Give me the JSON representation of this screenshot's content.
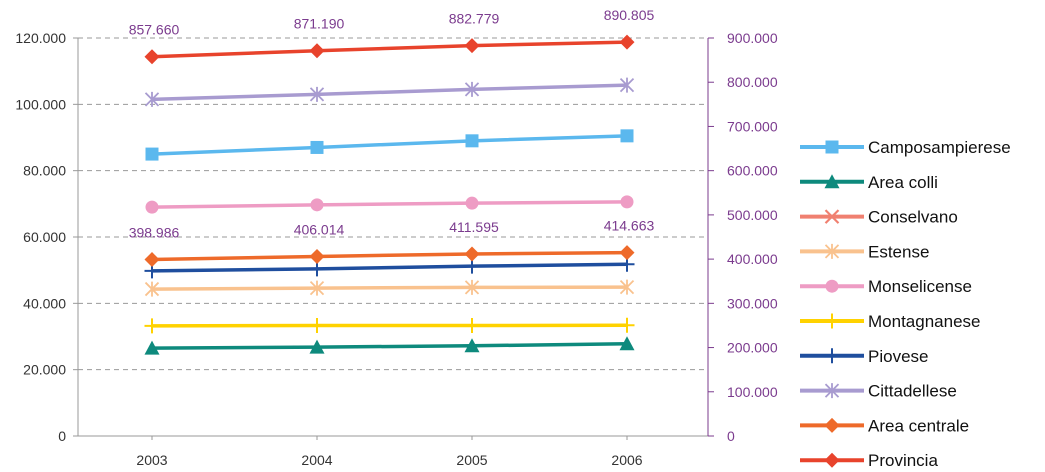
{
  "chart_data": {
    "type": "line",
    "x": [
      "2003",
      "2004",
      "2005",
      "2006"
    ],
    "y_left": {
      "range": [
        0,
        120000
      ],
      "ticks": [
        "0",
        "20.000",
        "40.000",
        "60.000",
        "80.000",
        "100.000",
        "120.000"
      ],
      "tick_values": [
        0,
        20000,
        40000,
        60000,
        80000,
        100000,
        120000
      ]
    },
    "y_right": {
      "range": [
        0,
        900000
      ],
      "ticks": [
        "0",
        "100.000",
        "200.000",
        "300.000",
        "400.000",
        "500.000",
        "600.000",
        "700.000",
        "800.000",
        "900.000"
      ],
      "tick_values": [
        0,
        100000,
        200000,
        300000,
        400000,
        500000,
        600000,
        700000,
        800000,
        900000
      ],
      "color": "#7B3B8E"
    },
    "grid": "dashed horizontal",
    "legend_position": "right",
    "series": [
      {
        "name": "Camposampierese",
        "values": [
          85000,
          87000,
          89000,
          90500
        ],
        "color": "#5BB8EE",
        "marker": "square",
        "axis": "left"
      },
      {
        "name": "Area colli",
        "values": [
          26500,
          26800,
          27200,
          27800
        ],
        "color": "#0E8A7D",
        "marker": "triangle",
        "axis": "left"
      },
      {
        "name": "Conselvano",
        "values": [
          null,
          null,
          null,
          null
        ],
        "color": "#F08070",
        "marker": "x",
        "axis": "left"
      },
      {
        "name": "Estense",
        "values": [
          44300,
          44600,
          44800,
          44900
        ],
        "color": "#F9C28E",
        "marker": "asterisk",
        "axis": "left"
      },
      {
        "name": "Monselicense",
        "values": [
          69000,
          69700,
          70200,
          70600
        ],
        "color": "#EE9CC4",
        "marker": "circle",
        "axis": "left"
      },
      {
        "name": "Montagnanese",
        "values": [
          33200,
          33300,
          33300,
          33400
        ],
        "color": "#FFD200",
        "marker": "plus",
        "axis": "left"
      },
      {
        "name": "Piovese",
        "values": [
          49800,
          50400,
          51200,
          51800
        ],
        "color": "#1F4E9E",
        "marker": "plus",
        "axis": "left"
      },
      {
        "name": "Cittadellese",
        "values": [
          101500,
          103000,
          104500,
          105800
        ],
        "color": "#A89BD0",
        "marker": "asterisk",
        "axis": "left"
      },
      {
        "name": "Area centrale",
        "values": [
          398986,
          406014,
          411595,
          414663
        ],
        "color": "#EE6A2A",
        "marker": "diamond",
        "axis": "right",
        "labels": [
          "398.986",
          "406.014",
          "411.595",
          "414.663"
        ]
      },
      {
        "name": "Provincia",
        "values": [
          857660,
          871190,
          882779,
          890805
        ],
        "color": "#E8432C",
        "marker": "diamond",
        "axis": "right",
        "labels": [
          "857.660",
          "871.190",
          "882.779",
          "890.805"
        ]
      }
    ]
  }
}
